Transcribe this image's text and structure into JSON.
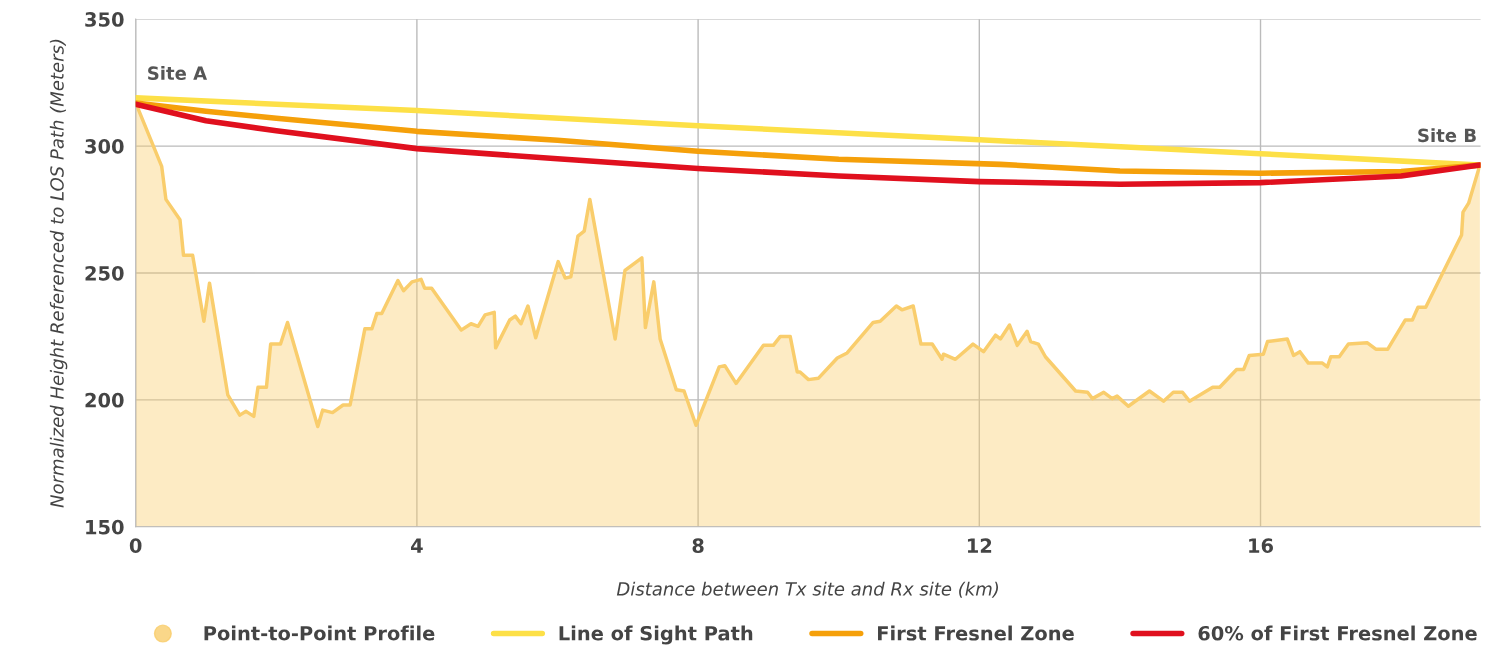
{
  "chart_data": {
    "type": "line",
    "xlabel": "Distance between Tx site and Rx site (km)",
    "ylabel": "Normalized Height Referenced to LOS Path (Meters)",
    "xlim": [
      0,
      19.13
    ],
    "ylim": [
      150,
      350
    ],
    "xticks": [
      0,
      4,
      8,
      12,
      16
    ],
    "yticks": [
      150,
      200,
      250,
      300,
      350
    ],
    "grid": true,
    "legend": "bottom",
    "annotations": [
      {
        "text": "Site A",
        "x": 0,
        "y": 317
      },
      {
        "text": "Site B",
        "x": 19.12,
        "y": 292.5
      }
    ],
    "series": [
      {
        "name": "Point-to-Point Profile",
        "type": "area",
        "color": "#f9cd6c",
        "x": [
          0,
          0.37,
          0.43,
          0.63,
          0.68,
          0.81,
          0.97,
          1.05,
          1.31,
          1.48,
          1.57,
          1.68,
          1.74,
          1.86,
          1.92,
          2.06,
          2.16,
          2.59,
          2.66,
          2.8,
          2.95,
          3.05,
          3.26,
          3.36,
          3.43,
          3.5,
          3.73,
          3.81,
          3.93,
          4.06,
          4.11,
          4.21,
          4.63,
          4.77,
          4.87,
          4.97,
          5.1,
          5.12,
          5.32,
          5.4,
          5.48,
          5.58,
          5.69,
          6.01,
          6.11,
          6.19,
          6.29,
          6.38,
          6.46,
          6.82,
          6.96,
          7.2,
          7.25,
          7.37,
          7.46,
          7.69,
          7.8,
          7.97,
          8.3,
          8.38,
          8.54,
          8.93,
          9.07,
          9.17,
          9.31,
          9.41,
          9.45,
          9.57,
          9.71,
          9.98,
          10.12,
          10.49,
          10.59,
          10.82,
          10.9,
          11.06,
          11.17,
          11.33,
          11.47,
          11.49,
          11.66,
          11.91,
          12.06,
          12.23,
          12.3,
          12.43,
          12.54,
          12.68,
          12.73,
          12.84,
          12.94,
          13.37,
          13.54,
          13.61,
          13.77,
          13.89,
          13.96,
          14.12,
          14.42,
          14.62,
          14.76,
          14.89,
          14.99,
          15.32,
          15.42,
          15.66,
          15.76,
          15.84,
          16.04,
          16.1,
          16.38,
          16.47,
          16.56,
          16.68,
          16.88,
          16.95,
          17.0,
          17.12,
          17.25,
          17.52,
          17.64,
          17.81,
          18.06,
          18.16,
          18.24,
          18.35,
          18.86,
          18.88,
          18.96,
          19.12
        ],
        "values": [
          317,
          292,
          279,
          271,
          257,
          257,
          231,
          246,
          202,
          194,
          195.5,
          193.5,
          205,
          205,
          222,
          222,
          230.5,
          189.5,
          196,
          195,
          198,
          198,
          228,
          228,
          234,
          234,
          247,
          243,
          246.5,
          247.5,
          244,
          244,
          227.5,
          230,
          229,
          233.5,
          234.5,
          220.5,
          231.5,
          233,
          230,
          237,
          224.5,
          254.5,
          248,
          248.5,
          264.5,
          266.5,
          279,
          224,
          251,
          256,
          228.5,
          246.5,
          224,
          204,
          203.5,
          190,
          213,
          213.5,
          206.5,
          221.5,
          221.5,
          225,
          225,
          211,
          211,
          208,
          208.5,
          216.5,
          218.5,
          230.5,
          231,
          237,
          235.5,
          237,
          222,
          222,
          216,
          218,
          216,
          222,
          219,
          225.5,
          224,
          229.5,
          221.5,
          227,
          223,
          222,
          217,
          203.5,
          203,
          200.5,
          203,
          200.5,
          201.5,
          197.5,
          203.5,
          199.5,
          203,
          203,
          199.5,
          205,
          205,
          212,
          212,
          217.5,
          218,
          223,
          224,
          217.5,
          219,
          214.5,
          214.5,
          213,
          217,
          217,
          222,
          222.5,
          220,
          220,
          231.5,
          231.5,
          236.5,
          236.5,
          265,
          274,
          277.5,
          292.5
        ]
      },
      {
        "name": "Line of Sight Path",
        "color": "#fde047",
        "x": [
          0,
          4,
          8,
          12,
          16,
          19.12
        ],
        "values": [
          319,
          314,
          308,
          302.5,
          297,
          292.5
        ]
      },
      {
        "name": "First Fresnel Zone",
        "color": "#f5a00a",
        "x": [
          0,
          1,
          2,
          4,
          6,
          8,
          10,
          12.3,
          14,
          16,
          18,
          19.12
        ],
        "values": [
          317,
          313.7,
          311,
          305.8,
          302.3,
          298,
          294.8,
          292.8,
          290.2,
          289.3,
          290,
          292.5
        ]
      },
      {
        "name": "60% of First Fresnel Zone",
        "color": "#e0101e",
        "x": [
          0,
          1,
          2,
          4,
          6,
          8,
          10,
          12,
          14,
          16,
          18,
          19.12
        ],
        "values": [
          316.5,
          310,
          306,
          299,
          295,
          291.2,
          288.2,
          286,
          285,
          285.6,
          288.2,
          292.5
        ]
      }
    ]
  }
}
